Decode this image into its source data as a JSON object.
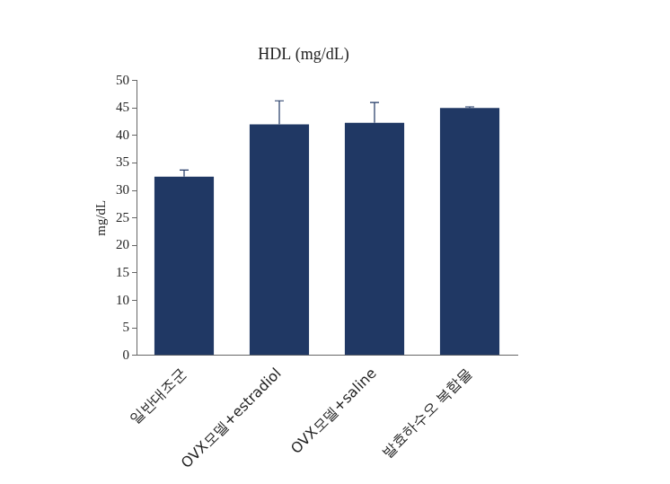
{
  "chart_data": {
    "type": "bar",
    "title": "HDL (mg/dL)",
    "y_label": "mg/dL",
    "categories": [
      "일반대조군",
      "OVX모델+estradiol",
      "OVX모델+saline",
      "발효하수오 복합물"
    ],
    "values": [
      32.5,
      42,
      42.3,
      45
    ],
    "errors": [
      1.2,
      4.3,
      3.7,
      0.2
    ],
    "color": "#203864",
    "ylim": [
      0,
      50
    ],
    "yticks": [
      0,
      5,
      10,
      15,
      20,
      25,
      30,
      35,
      40,
      45,
      50
    ],
    "grid": false
  }
}
